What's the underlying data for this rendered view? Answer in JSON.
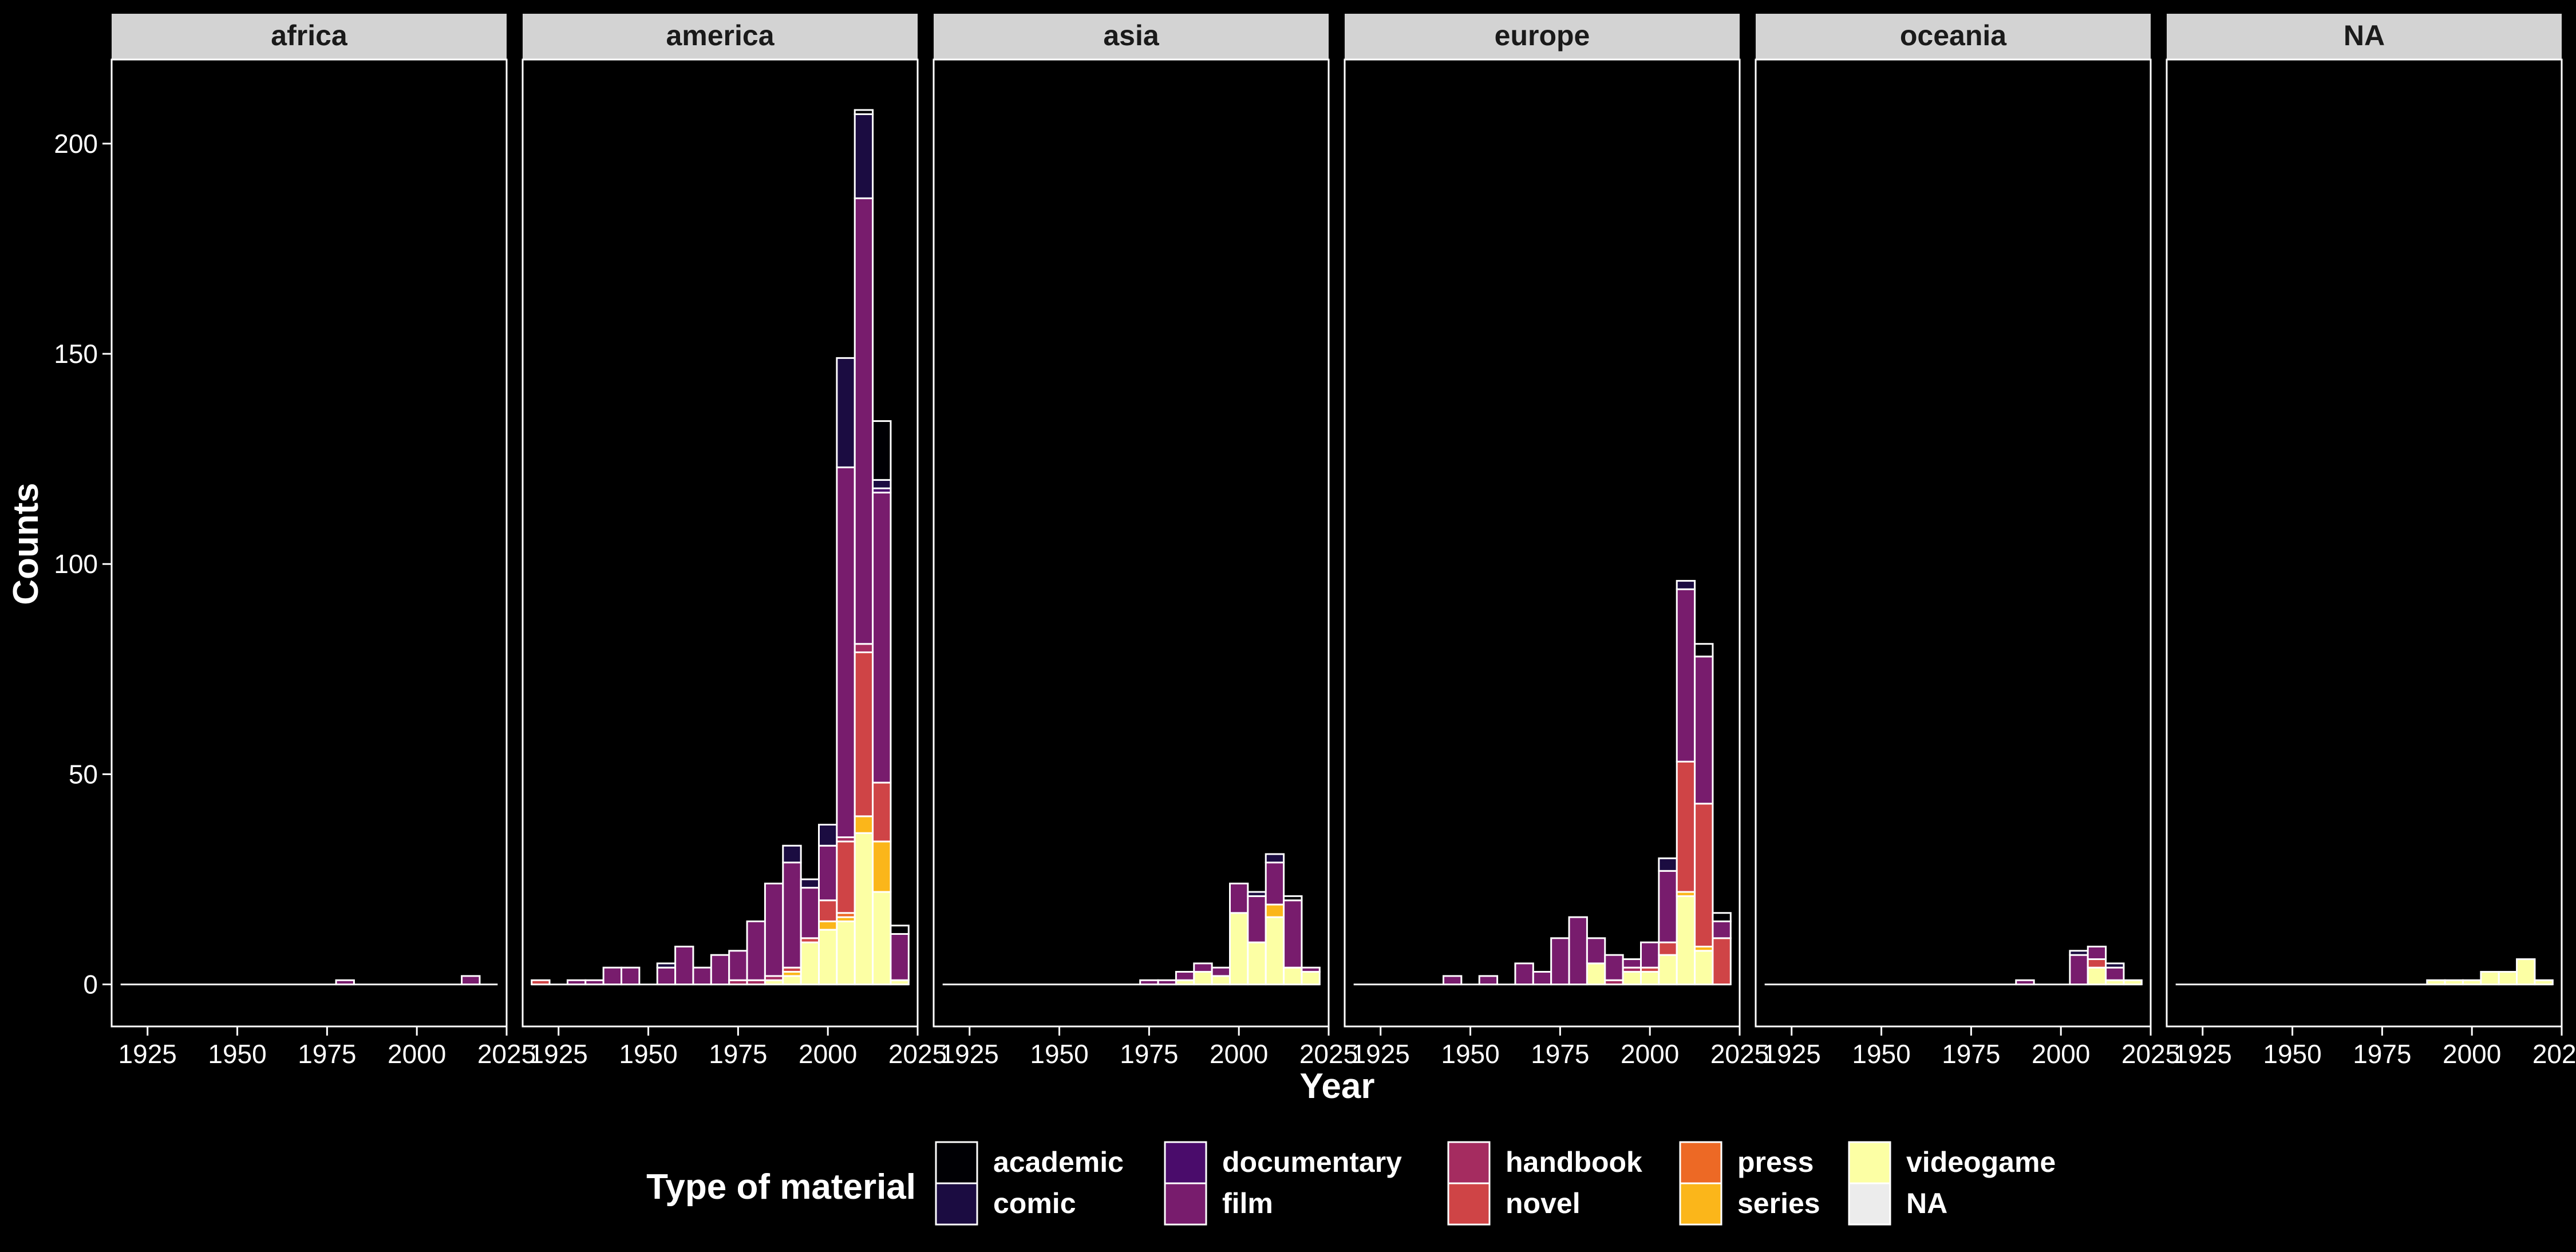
{
  "chart_data": {
    "type": "bar",
    "subtype": "stacked-histogram-faceted",
    "xlabel": "Year",
    "ylabel": "Counts",
    "xlim": [
      1915,
      2025
    ],
    "ylim": [
      -10,
      220
    ],
    "x_ticks": [
      1925,
      1950,
      1975,
      2000,
      2025
    ],
    "y_ticks": [
      0,
      50,
      100,
      150,
      200
    ],
    "bin_width": 5,
    "facets": [
      "africa",
      "america",
      "asia",
      "europe",
      "oceania",
      "NA"
    ],
    "legend": {
      "title": "Type of material",
      "position": "bottom",
      "entries": [
        "academic",
        "comic",
        "documentary",
        "film",
        "handbook",
        "novel",
        "press",
        "series",
        "videogame",
        "NA"
      ]
    },
    "colors": {
      "background": "#000000",
      "strip_fill": "#d3d3d3",
      "panel_border": "#ffffff",
      "bar_outline": "#ffffff",
      "academic": "#000004",
      "comic": "#1b0c41",
      "documentary": "#4a0c6b",
      "film": "#781c6d",
      "handbook": "#a52c60",
      "novel": "#cf4446",
      "press": "#ed6925",
      "series": "#fbb61a",
      "videogame": "#fcffa4",
      "NA": "#ececec"
    },
    "series": [
      {
        "facet": "africa",
        "bins": [
          {
            "x": 1980,
            "segments": {
              "film": 1
            }
          },
          {
            "x": 2015,
            "segments": {
              "film": 2
            }
          }
        ]
      },
      {
        "facet": "america",
        "bins": [
          {
            "x": 1920,
            "segments": {
              "novel": 1
            }
          },
          {
            "x": 1930,
            "segments": {
              "film": 1
            }
          },
          {
            "x": 1935,
            "segments": {
              "film": 1
            }
          },
          {
            "x": 1940,
            "segments": {
              "film": 4
            }
          },
          {
            "x": 1945,
            "segments": {
              "film": 4
            }
          },
          {
            "x": 1955,
            "segments": {
              "comic": 1,
              "film": 4
            }
          },
          {
            "x": 1960,
            "segments": {
              "film": 9
            }
          },
          {
            "x": 1965,
            "segments": {
              "film": 4
            }
          },
          {
            "x": 1970,
            "segments": {
              "film": 7
            }
          },
          {
            "x": 1975,
            "segments": {
              "handbook": 1,
              "film": 7
            }
          },
          {
            "x": 1980,
            "segments": {
              "handbook": 1,
              "film": 14
            }
          },
          {
            "x": 1985,
            "segments": {
              "videogame": 1,
              "handbook": 1,
              "film": 22
            }
          },
          {
            "x": 1990,
            "segments": {
              "videogame": 2,
              "series": 1,
              "novel": 1,
              "film": 25,
              "comic": 4
            }
          },
          {
            "x": 1995,
            "segments": {
              "videogame": 10,
              "novel": 1,
              "film": 12,
              "comic": 2
            }
          },
          {
            "x": 2000,
            "segments": {
              "videogame": 13,
              "series": 2,
              "novel": 5,
              "film": 13,
              "comic": 5
            }
          },
          {
            "x": 2005,
            "segments": {
              "videogame": 15,
              "series": 1,
              "press": 1,
              "novel": 17,
              "handbook": 1,
              "film": 88,
              "comic": 26
            }
          },
          {
            "x": 2010,
            "segments": {
              "videogame": 36,
              "series": 4,
              "novel": 39,
              "handbook": 2,
              "film": 106,
              "comic": 20,
              "academic": 1
            }
          },
          {
            "x": 2015,
            "segments": {
              "videogame": 22,
              "series": 12,
              "novel": 14,
              "film": 69,
              "documentary": 1,
              "comic": 2,
              "academic": 14
            }
          },
          {
            "x": 2020,
            "segments": {
              "videogame": 1,
              "film": 11,
              "academic": 2
            }
          }
        ]
      },
      {
        "facet": "asia",
        "bins": [
          {
            "x": 1975,
            "segments": {
              "film": 1
            }
          },
          {
            "x": 1980,
            "segments": {
              "film": 1
            }
          },
          {
            "x": 1985,
            "segments": {
              "videogame": 1,
              "film": 2
            }
          },
          {
            "x": 1990,
            "segments": {
              "videogame": 3,
              "film": 2
            }
          },
          {
            "x": 1995,
            "segments": {
              "videogame": 2,
              "film": 2
            }
          },
          {
            "x": 2000,
            "segments": {
              "videogame": 17,
              "film": 7
            }
          },
          {
            "x": 2005,
            "segments": {
              "videogame": 10,
              "film": 11,
              "comic": 1
            }
          },
          {
            "x": 2010,
            "segments": {
              "videogame": 16,
              "series": 3,
              "film": 10,
              "comic": 2
            }
          },
          {
            "x": 2015,
            "segments": {
              "videogame": 4,
              "film": 16,
              "academic": 1
            }
          },
          {
            "x": 2020,
            "segments": {
              "videogame": 3,
              "film": 1
            }
          }
        ]
      },
      {
        "facet": "europe",
        "bins": [
          {
            "x": 1945,
            "segments": {
              "film": 2
            }
          },
          {
            "x": 1955,
            "segments": {
              "film": 2
            }
          },
          {
            "x": 1965,
            "segments": {
              "film": 5
            }
          },
          {
            "x": 1970,
            "segments": {
              "film": 3
            }
          },
          {
            "x": 1975,
            "segments": {
              "film": 11
            }
          },
          {
            "x": 1980,
            "segments": {
              "film": 16
            }
          },
          {
            "x": 1985,
            "segments": {
              "videogame": 5,
              "film": 6
            }
          },
          {
            "x": 1990,
            "segments": {
              "handbook": 1,
              "film": 6
            }
          },
          {
            "x": 1995,
            "segments": {
              "videogame": 3,
              "handbook": 1,
              "film": 2
            }
          },
          {
            "x": 2000,
            "segments": {
              "videogame": 3,
              "novel": 1,
              "film": 6
            }
          },
          {
            "x": 2005,
            "segments": {
              "videogame": 7,
              "novel": 3,
              "film": 17,
              "comic": 3
            }
          },
          {
            "x": 2010,
            "segments": {
              "videogame": 21,
              "series": 1,
              "novel": 31,
              "film": 41,
              "comic": 2
            }
          },
          {
            "x": 2015,
            "segments": {
              "videogame": 8,
              "series": 1,
              "novel": 34,
              "film": 35,
              "academic": 3
            }
          },
          {
            "x": 2020,
            "segments": {
              "novel": 11,
              "film": 4,
              "academic": 2
            }
          }
        ]
      },
      {
        "facet": "oceania",
        "bins": [
          {
            "x": 1990,
            "segments": {
              "film": 1
            }
          },
          {
            "x": 2005,
            "segments": {
              "film": 7,
              "comic": 1
            }
          },
          {
            "x": 2010,
            "segments": {
              "videogame": 4,
              "novel": 2,
              "film": 3
            }
          },
          {
            "x": 2015,
            "segments": {
              "videogame": 1,
              "film": 3,
              "comic": 1
            }
          },
          {
            "x": 2020,
            "segments": {
              "videogame": 1
            }
          }
        ]
      },
      {
        "facet": "NA",
        "bins": [
          {
            "x": 1990,
            "segments": {
              "videogame": 1
            }
          },
          {
            "x": 1995,
            "segments": {
              "videogame": 1
            }
          },
          {
            "x": 2000,
            "segments": {
              "videogame": 1
            }
          },
          {
            "x": 2005,
            "segments": {
              "videogame": 3
            }
          },
          {
            "x": 2010,
            "segments": {
              "videogame": 3
            }
          },
          {
            "x": 2015,
            "segments": {
              "videogame": 6
            }
          },
          {
            "x": 2020,
            "segments": {
              "videogame": 1
            }
          }
        ]
      }
    ]
  }
}
